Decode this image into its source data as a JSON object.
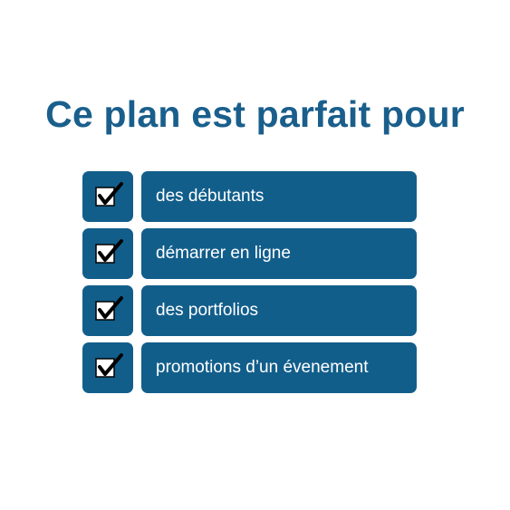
{
  "title": "Ce plan est parfait pour",
  "items": [
    {
      "label": "des débutants",
      "checked": true
    },
    {
      "label": "démarrer en ligne",
      "checked": true
    },
    {
      "label": "des portfolios",
      "checked": true
    },
    {
      "label": "promotions d’un évenement",
      "checked": true
    }
  ],
  "colors": {
    "title": "#1a5f8c",
    "box": "#125e8b",
    "label_text": "#ffffff"
  }
}
